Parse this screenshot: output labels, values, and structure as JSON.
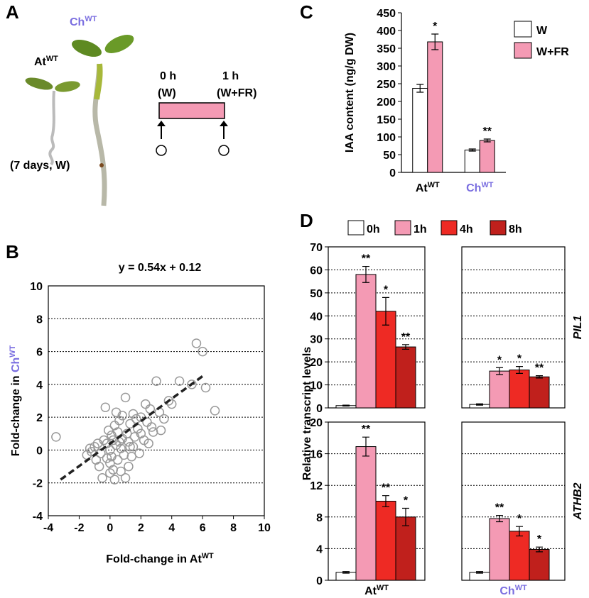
{
  "panel_a": {
    "panel": "A",
    "at": "At",
    "at_sup": "WT",
    "ch": "Ch",
    "ch_sup": "WT",
    "age": "(7 days, W)",
    "t0": "0 h",
    "t0_cond": "(W)",
    "t1": "1 h",
    "t1_cond": "(W+FR)"
  },
  "chart_data": [
    {
      "type": "scatter",
      "panel": "B",
      "title": "y = 0.54x + 0.12",
      "xlabel": "Fold-change in At",
      "xlabel_sup": "WT",
      "ylabel": "Fold-change in ",
      "ylabel_colored": "Ch",
      "ylabel_sup": "WT",
      "xlim": [
        -4,
        10
      ],
      "ylim": [
        -4,
        10
      ],
      "xticks": [
        -4,
        -2,
        0,
        2,
        4,
        6,
        8,
        10
      ],
      "yticks": [
        -4,
        -2,
        0,
        2,
        4,
        6,
        8,
        10
      ],
      "grid": true,
      "color": "#999999",
      "label_color": "#7a6ee0",
      "fit_line": {
        "x": [
          -3.2,
          6
        ],
        "y": [
          -1.8,
          4.5
        ]
      },
      "x": [
        -3.5,
        -1.5,
        -1.2,
        -1,
        -0.8,
        -0.6,
        -0.5,
        -0.4,
        -0.3,
        -0.2,
        -0.1,
        0,
        0,
        0.1,
        0.2,
        0.3,
        0.4,
        0.5,
        0.6,
        0.7,
        0.8,
        0.9,
        1,
        1.1,
        1.2,
        1.3,
        1.4,
        1.5,
        1.6,
        1.8,
        2,
        2.2,
        2.4,
        2.6,
        2.8,
        3,
        3.2,
        3.5,
        3.8,
        4,
        4.5,
        5.3,
        5.6,
        6,
        6.2,
        6.8,
        1,
        0.3,
        -0.7,
        0.5,
        0.8,
        1.2,
        1.5,
        2,
        2.5,
        -0.2,
        0.1,
        0.7,
        1.7,
        2.3,
        -0.9,
        0.2,
        1.9,
        0.4,
        -1.3,
        0,
        1.3,
        2.7,
        0.6,
        3.3
      ],
      "y": [
        0.8,
        -0.3,
        -0.1,
        0.2,
        0.4,
        -0.2,
        -1.7,
        0.6,
        2.6,
        -0.5,
        1.2,
        0,
        -0.8,
        0.9,
        -1.2,
        1.5,
        0.3,
        -0.6,
        1.8,
        0.1,
        2.1,
        -0.3,
        3.2,
        1,
        0.5,
        1.6,
        -0.4,
        2.2,
        0.8,
        1.3,
        2,
        0.6,
        1.7,
        2.5,
        1.1,
        4.2,
        2.3,
        1.9,
        3,
        2.8,
        4.2,
        4,
        6.5,
        6,
        3.8,
        2.4,
        -1.7,
        -1.8,
        -1,
        1.1,
        0.7,
        -1,
        0.2,
        1,
        0.4,
        0.4,
        -0.4,
        -1.3,
        1.9,
        2.8,
        -0.6,
        0.6,
        -0.2,
        2.3,
        0.1,
        -1.4,
        0.2,
        1.4,
        0.5,
        1.2
      ]
    },
    {
      "type": "bar",
      "panel": "C",
      "ylabel": "IAA content (ng/g DW)",
      "categories": [
        "At",
        "Ch"
      ],
      "category_sups": [
        "WT",
        "WT"
      ],
      "category_colors": [
        "#000000",
        "#7a6ee0"
      ],
      "ylim": [
        0,
        450
      ],
      "yticks": [
        0,
        50,
        100,
        150,
        200,
        250,
        300,
        350,
        400,
        450
      ],
      "series": [
        {
          "name": "W",
          "color": "#ffffff",
          "values": [
            237,
            63
          ],
          "errors": [
            11,
            3
          ]
        },
        {
          "name": "W+FR",
          "color": "#f49ab4",
          "values": [
            368,
            90
          ],
          "errors": [
            22,
            4
          ],
          "stars": [
            "*",
            "**"
          ]
        }
      ]
    },
    {
      "type": "bar_grid",
      "panel": "D",
      "ylabel": "Relative transcript levels",
      "series": [
        {
          "name": "0h",
          "color": "#ffffff"
        },
        {
          "name": "1h",
          "color": "#f49ab4"
        },
        {
          "name": "4h",
          "color": "#ee2a24"
        },
        {
          "name": "8h",
          "color": "#c0201c"
        }
      ],
      "columns": [
        {
          "category": "At",
          "category_sup": "WT",
          "color": "#000000"
        },
        {
          "category": "Ch",
          "category_sup": "WT",
          "color": "#7a6ee0"
        }
      ],
      "rows": [
        {
          "gene": "PIL1",
          "ylim": [
            0,
            70
          ],
          "yticks": [
            0,
            10,
            20,
            30,
            40,
            50,
            60,
            70
          ],
          "cells": [
            {
              "values": [
                1,
                58,
                42,
                26.5
              ],
              "errors": [
                0.2,
                3.5,
                6,
                1
              ],
              "stars": [
                null,
                "**",
                "*",
                "**"
              ]
            },
            {
              "values": [
                1.5,
                16,
                16.5,
                13.5
              ],
              "errors": [
                0.3,
                1.5,
                1.5,
                0.5
              ],
              "stars": [
                null,
                "*",
                "*",
                "**"
              ]
            }
          ]
        },
        {
          "gene": "ATHB2",
          "ylim": [
            0,
            20
          ],
          "yticks": [
            0,
            4,
            8,
            12,
            16,
            20
          ],
          "cells": [
            {
              "values": [
                1,
                16.9,
                10,
                8
              ],
              "errors": [
                0.1,
                1.2,
                0.7,
                1.1
              ],
              "stars": [
                null,
                "**",
                "**",
                "*"
              ]
            },
            {
              "values": [
                1,
                7.8,
                6.2,
                3.9
              ],
              "errors": [
                0.1,
                0.4,
                0.6,
                0.3
              ],
              "stars": [
                null,
                "**",
                "*",
                "*"
              ]
            }
          ]
        }
      ]
    }
  ]
}
